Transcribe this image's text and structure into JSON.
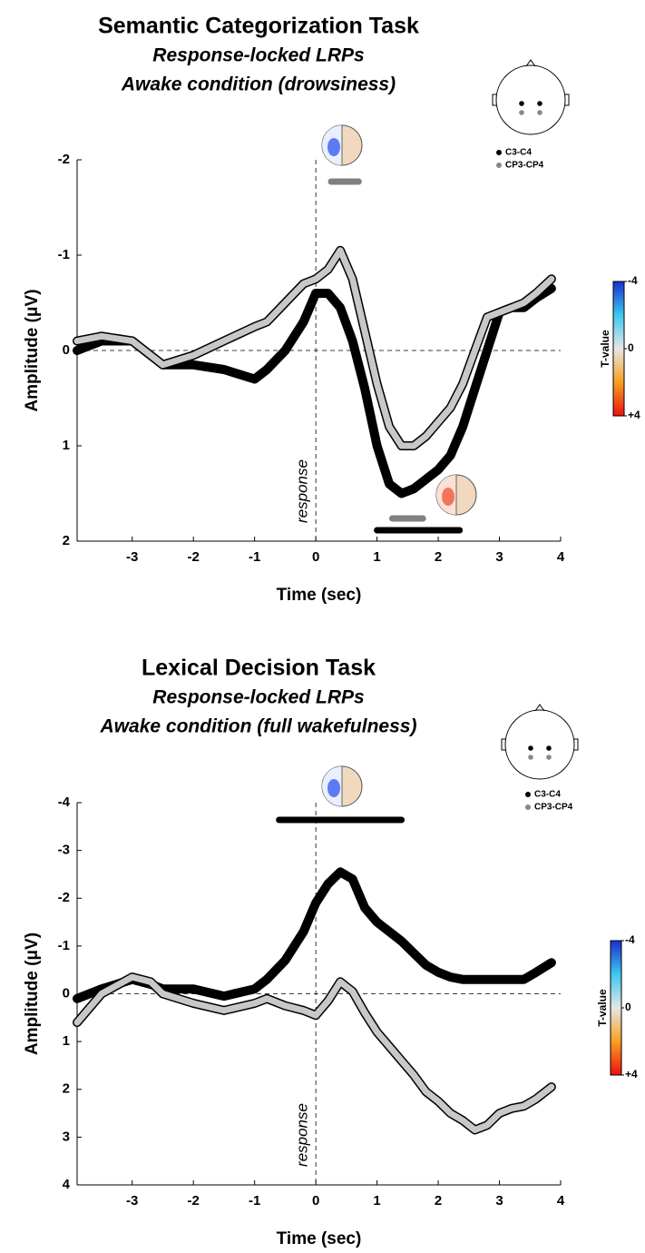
{
  "chart_data": [
    {
      "type": "line",
      "title": "Semantic Categorization Task",
      "subtitles": [
        "Response-locked LRPs",
        "Awake condition (drowsiness)"
      ],
      "x_label": "Time (sec)",
      "y_label": "Amplitude (μV)",
      "annotation": "response",
      "x": [
        -3.9,
        -3.5,
        -3,
        -2.7,
        -2.5,
        -2,
        -1.5,
        -1,
        -0.8,
        -0.5,
        -0.2,
        0,
        0.2,
        0.4,
        0.6,
        0.8,
        1,
        1.2,
        1.4,
        1.6,
        1.8,
        2,
        2.2,
        2.4,
        2.6,
        2.8,
        3,
        3.2,
        3.4,
        3.6,
        3.85
      ],
      "series": [
        {
          "name": "C3-C4",
          "color": "#000000",
          "values": [
            0,
            -0.1,
            -0.1,
            0.05,
            0.15,
            0.15,
            0.2,
            0.3,
            0.2,
            0,
            -0.3,
            -0.6,
            -0.6,
            -0.45,
            -0.1,
            0.4,
            1.0,
            1.4,
            1.5,
            1.45,
            1.35,
            1.25,
            1.1,
            0.8,
            0.4,
            0,
            -0.4,
            -0.45,
            -0.45,
            -0.55,
            -0.65
          ]
        },
        {
          "name": "CP3-CP4",
          "color": "#c8c8c8",
          "values": [
            -0.1,
            -0.15,
            -0.1,
            0.05,
            0.15,
            0.05,
            -0.1,
            -0.25,
            -0.3,
            -0.5,
            -0.7,
            -0.75,
            -0.85,
            -1.05,
            -0.75,
            -0.2,
            0.35,
            0.8,
            1.0,
            1.0,
            0.9,
            0.75,
            0.6,
            0.35,
            0,
            -0.35,
            -0.4,
            -0.45,
            -0.5,
            -0.6,
            -0.75
          ]
        }
      ],
      "significance_bars": [
        {
          "color": "#808080",
          "start": 0.25,
          "end": 0.7
        },
        {
          "color": "#808080",
          "start": 1.25,
          "end": 1.75
        },
        {
          "color": "#000000",
          "start": 1.0,
          "end": 2.35
        }
      ],
      "xlim": [
        -3.9,
        4
      ],
      "xticks": [
        -3,
        -2,
        -1,
        0,
        1,
        2,
        3,
        4
      ],
      "ylim": [
        2,
        -2
      ],
      "yticks": [
        -2,
        -1,
        0,
        1,
        2
      ],
      "colorbar": {
        "label": "T-value",
        "ticks": [
          -4,
          0,
          {
            "value": 4,
            "label": "+4"
          }
        ]
      }
    },
    {
      "type": "line",
      "title": "Lexical Decision Task",
      "subtitles": [
        "Response-locked LRPs",
        "Awake condition (full wakefulness)"
      ],
      "x_label": "Time (sec)",
      "y_label": "Amplitude (μV)",
      "annotation": "response",
      "x": [
        -3.9,
        -3.5,
        -3,
        -2.7,
        -2.5,
        -2,
        -1.5,
        -1,
        -0.8,
        -0.5,
        -0.2,
        0,
        0.2,
        0.4,
        0.6,
        0.8,
        1,
        1.2,
        1.4,
        1.6,
        1.8,
        2,
        2.2,
        2.4,
        2.6,
        2.8,
        3,
        3.2,
        3.4,
        3.6,
        3.85
      ],
      "series": [
        {
          "name": "C3-C4",
          "color": "#000000",
          "values": [
            0.1,
            -0.1,
            -0.3,
            -0.2,
            -0.1,
            -0.1,
            0.05,
            -0.1,
            -0.3,
            -0.7,
            -1.3,
            -1.9,
            -2.3,
            -2.55,
            -2.4,
            -1.8,
            -1.5,
            -1.3,
            -1.1,
            -0.85,
            -0.6,
            -0.45,
            -0.35,
            -0.3,
            -0.3,
            -0.3,
            -0.3,
            -0.3,
            -0.3,
            -0.45,
            -0.65
          ]
        },
        {
          "name": "CP3-CP4",
          "color": "#c8c8c8",
          "values": [
            0.6,
            0,
            -0.35,
            -0.25,
            0,
            0.2,
            0.35,
            0.2,
            0.1,
            0.25,
            0.35,
            0.45,
            0.15,
            -0.25,
            -0.05,
            0.4,
            0.8,
            1.1,
            1.4,
            1.7,
            2.05,
            2.25,
            2.5,
            2.65,
            2.85,
            2.75,
            2.5,
            2.4,
            2.35,
            2.2,
            1.95
          ]
        }
      ],
      "significance_bars": [
        {
          "color": "#000000",
          "start": -0.6,
          "end": 1.4
        }
      ],
      "xlim": [
        -3.9,
        4
      ],
      "xticks": [
        -3,
        -2,
        -1,
        0,
        1,
        2,
        3,
        4
      ],
      "ylim": [
        4,
        -4
      ],
      "yticks": [
        -4,
        -3,
        -2,
        -1,
        0,
        1,
        2,
        3,
        4
      ],
      "colorbar": {
        "label": "T-value",
        "ticks": [
          -4,
          0,
          {
            "value": 4,
            "label": "+4"
          }
        ]
      }
    }
  ]
}
